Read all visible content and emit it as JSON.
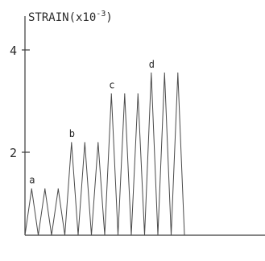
{
  "chart_data": {
    "type": "line",
    "ylabel_main": "STRAIN(x10",
    "ylabel_exp": "-3",
    "ylabel_close": ")",
    "ylim": [
      0,
      4.6
    ],
    "yticks": [
      2,
      4
    ],
    "ytick_labels": [
      "2",
      "4"
    ],
    "grid": false,
    "cycle_peaks": [
      1.0,
      1.0,
      1.0,
      2.0,
      2.0,
      2.0,
      3.05,
      3.05,
      3.05,
      3.5,
      3.5,
      3.5
    ],
    "peak_labels": [
      {
        "cycle_index": 0,
        "text": "a"
      },
      {
        "cycle_index": 3,
        "text": "b"
      },
      {
        "cycle_index": 6,
        "text": "c"
      },
      {
        "cycle_index": 9,
        "text": "d"
      }
    ]
  }
}
